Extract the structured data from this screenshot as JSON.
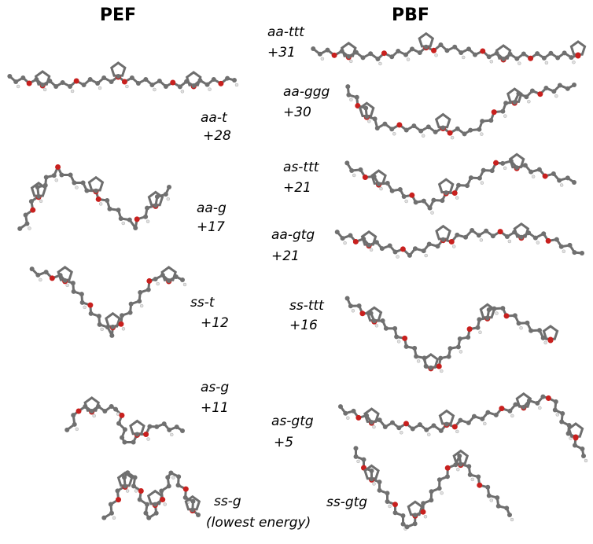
{
  "headers": {
    "left": "PEF",
    "right": "PBF"
  },
  "pef": [
    {
      "label": "aa-t",
      "energy": "+28"
    },
    {
      "label": "aa-g",
      "energy": "+17"
    },
    {
      "label": "ss-t",
      "energy": "+12"
    },
    {
      "label": "as-g",
      "energy": "+11"
    },
    {
      "label": "ss-g",
      "note": "(lowest energy)"
    }
  ],
  "pbf": [
    {
      "label": "aa-ttt",
      "energy": "+31"
    },
    {
      "label": "aa-ggg",
      "energy": "+30"
    },
    {
      "label": "as-ttt",
      "energy": "+21"
    },
    {
      "label": "aa-gtg",
      "energy": "+21"
    },
    {
      "label": "ss-ttt",
      "energy": "+16"
    },
    {
      "label": "as-gtg",
      "energy": "+5"
    },
    {
      "label": "ss-gtg"
    }
  ]
}
